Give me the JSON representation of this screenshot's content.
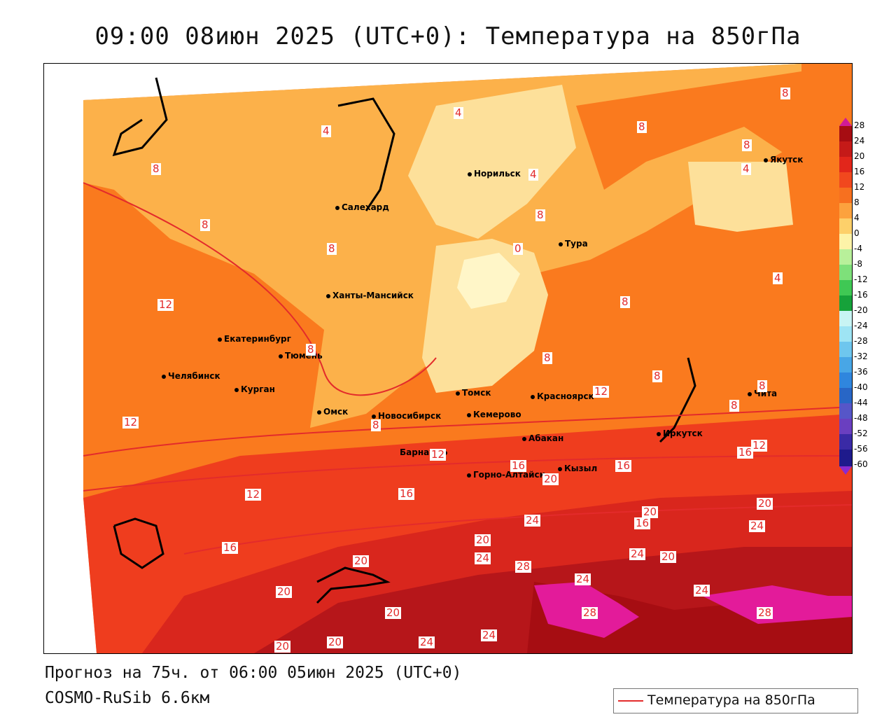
{
  "title": "09:00 08июн 2025 (UTC+0): Температура на 850гПа",
  "forecast_line": "Прогноз на 75ч. от 06:00 05июн 2025 (UTC+0)",
  "model_line": "COSMO-RuSib 6.6км",
  "legend": {
    "label": "Температура на 850гПа",
    "color": "#e32b2b"
  },
  "colorbar": {
    "ticks": [
      "28",
      "24",
      "20",
      "16",
      "12",
      "8",
      "4",
      "0",
      "-4",
      "-8",
      "-12",
      "-16",
      "-20",
      "-24",
      "-28",
      "-32",
      "-36",
      "-40",
      "-44",
      "-48",
      "-52",
      "-56",
      "-60"
    ]
  },
  "cities": [
    {
      "name": "Якутск"
    },
    {
      "name": "Норильск"
    },
    {
      "name": "Салехард"
    },
    {
      "name": "Тура"
    },
    {
      "name": "Ханты-Мансийск"
    },
    {
      "name": "Екатеринбург"
    },
    {
      "name": "Тюмень"
    },
    {
      "name": "Челябинск"
    },
    {
      "name": "Курган"
    },
    {
      "name": "Омск"
    },
    {
      "name": "Новосибирск"
    },
    {
      "name": "Томск"
    },
    {
      "name": "Кемерово"
    },
    {
      "name": "Красноярск"
    },
    {
      "name": "Абакан"
    },
    {
      "name": "Барнаул"
    },
    {
      "name": "Горно-Алтайск"
    },
    {
      "name": "Кызыл"
    },
    {
      "name": "Иркутск"
    },
    {
      "name": "Чита"
    }
  ],
  "contour_labels": [
    "8",
    "8",
    "4",
    "8",
    "4",
    "4",
    "8",
    "8",
    "0",
    "8",
    "8",
    "8",
    "4",
    "4",
    "12",
    "8",
    "8",
    "8",
    "8",
    "8",
    "8",
    "12",
    "12",
    "12",
    "16",
    "12",
    "16",
    "16",
    "20",
    "12",
    "16",
    "16",
    "20",
    "24",
    "20",
    "24",
    "28",
    "24",
    "24",
    "20",
    "20",
    "20",
    "24",
    "20",
    "28",
    "24",
    "20",
    "20",
    "24",
    "24",
    "28",
    "20",
    "16"
  ]
}
